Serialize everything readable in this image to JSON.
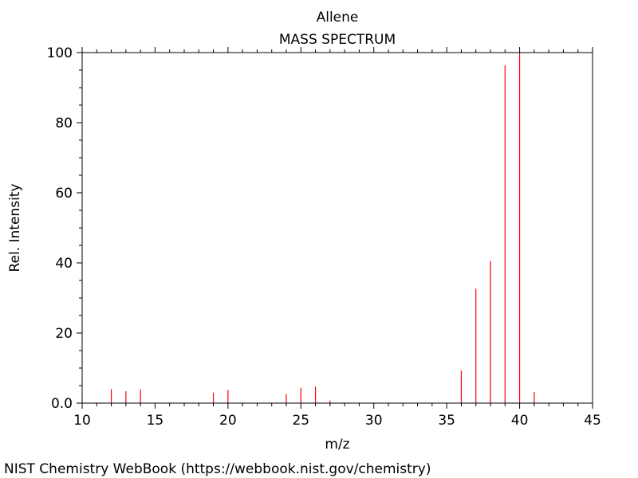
{
  "chart_data": {
    "type": "bar",
    "title": "Allene",
    "subtitle": "MASS SPECTRUM",
    "xlabel": "m/z",
    "ylabel": "Rel. Intensity",
    "xlim": [
      10,
      45
    ],
    "ylim": [
      0,
      100
    ],
    "x_ticks": [
      "10",
      "15",
      "20",
      "25",
      "30",
      "35",
      "40",
      "45"
    ],
    "y_ticks": [
      "0.0",
      "20",
      "40",
      "60",
      "80",
      "100"
    ],
    "grid": false,
    "peak_color": "#ff0000",
    "peaks": [
      {
        "mz": 12,
        "intensity": 4.0
      },
      {
        "mz": 13,
        "intensity": 3.4
      },
      {
        "mz": 14,
        "intensity": 3.9
      },
      {
        "mz": 19,
        "intensity": 3.0
      },
      {
        "mz": 20,
        "intensity": 3.7
      },
      {
        "mz": 24,
        "intensity": 2.6
      },
      {
        "mz": 25,
        "intensity": 4.4
      },
      {
        "mz": 26,
        "intensity": 4.7
      },
      {
        "mz": 27,
        "intensity": 0.7
      },
      {
        "mz": 36,
        "intensity": 9.3
      },
      {
        "mz": 37,
        "intensity": 32.6
      },
      {
        "mz": 38,
        "intensity": 40.5
      },
      {
        "mz": 39,
        "intensity": 96.3
      },
      {
        "mz": 40,
        "intensity": 100.0
      },
      {
        "mz": 41,
        "intensity": 3.2
      }
    ]
  },
  "footer": {
    "credit": "NIST Chemistry WebBook (https://webbook.nist.gov/chemistry)"
  }
}
